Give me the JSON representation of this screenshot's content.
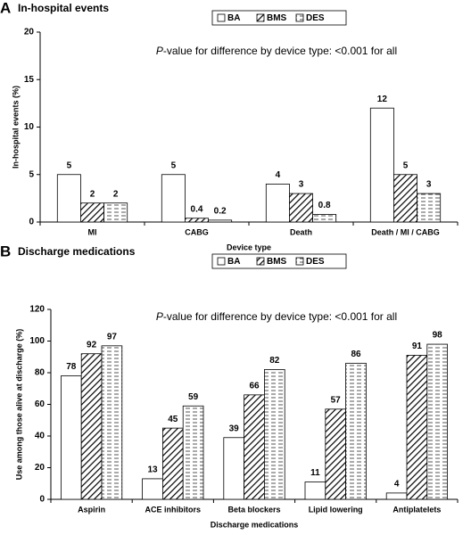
{
  "chart_data": [
    {
      "type": "bar",
      "panel": "A",
      "title": "In-hospital events",
      "annotation": {
        "italic": "P",
        "text": "-value for difference by device type: <0.001 for all"
      },
      "categories": [
        "MI",
        "CABG",
        "Death",
        "Death / MI / CABG"
      ],
      "series": [
        {
          "name": "BA",
          "color": "#ffffff",
          "pattern": "none",
          "values": [
            5,
            5,
            4,
            12
          ]
        },
        {
          "name": "BMS",
          "color": "#000000",
          "pattern": "diagonal",
          "values": [
            2,
            0.4,
            3,
            5
          ]
        },
        {
          "name": "DES",
          "color": "#555555",
          "pattern": "dashes",
          "values": [
            2,
            0.2,
            0.8,
            3
          ]
        }
      ],
      "ylabel": "In-hospital events (%)",
      "xlabel": "Device type",
      "ylim": [
        0,
        20
      ],
      "yticks": [
        0,
        5,
        10,
        15,
        20
      ],
      "legend": "top"
    },
    {
      "type": "bar",
      "panel": "B",
      "title": "Discharge medications",
      "annotation": {
        "italic": "P",
        "text": "-value for difference by device type: <0.001 for all"
      },
      "categories": [
        "Aspirin",
        "ACE inhibitors",
        "Beta blockers",
        "Lipid lowering",
        "Antiplatelets"
      ],
      "series": [
        {
          "name": "BA",
          "color": "#ffffff",
          "pattern": "none",
          "values": [
            78,
            13,
            39,
            11,
            4
          ]
        },
        {
          "name": "BMS",
          "color": "#000000",
          "pattern": "diagonal",
          "values": [
            92,
            45,
            66,
            57,
            91
          ]
        },
        {
          "name": "DES",
          "color": "#555555",
          "pattern": "dashes",
          "values": [
            97,
            59,
            82,
            86,
            98
          ]
        }
      ],
      "ylabel": "Use among those alive at discharge (%)",
      "xlabel": "Discharge medications",
      "ylim": [
        0,
        120
      ],
      "yticks": [
        0,
        20,
        40,
        60,
        80,
        100,
        120
      ],
      "legend": "top"
    }
  ]
}
